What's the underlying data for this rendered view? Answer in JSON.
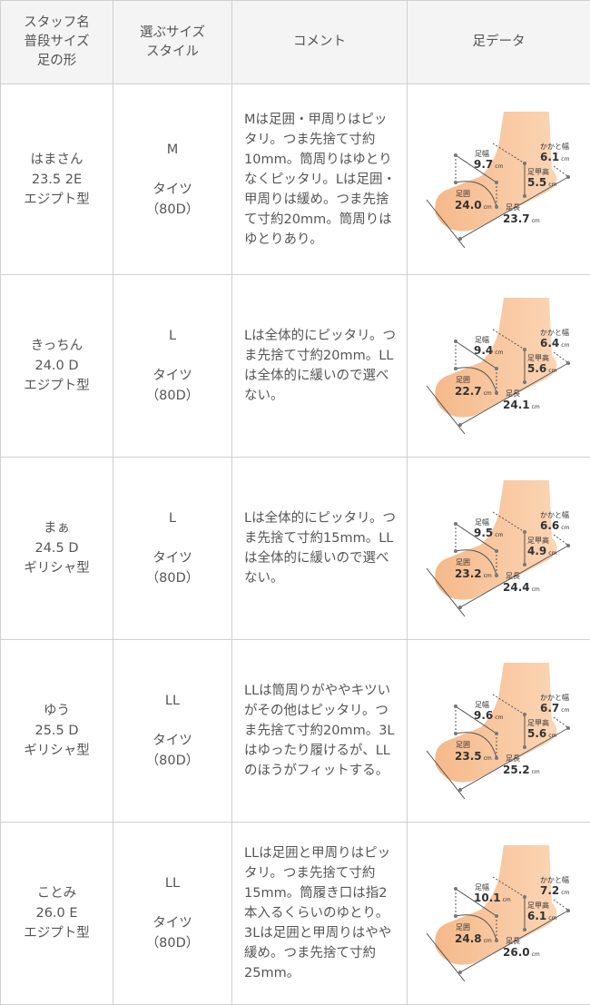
{
  "header": {
    "col1": [
      "スタッフ名",
      "普段サイズ",
      "足の形"
    ],
    "col2": [
      "選ぶサイズ",
      "スタイル"
    ],
    "col3": "コメント",
    "col4": "足データ"
  },
  "labels": {
    "width": "足幅",
    "girth": "足囲",
    "length": "足長",
    "instep": "足甲高",
    "heel": "かかと幅",
    "unit": "cm"
  },
  "colors": {
    "skin": "#f7c9a0",
    "border": "#d0d0d0",
    "header_bg": "#f4f4f4"
  },
  "rows": [
    {
      "name": "はまさん",
      "size": "23.5 2E",
      "shape": "エジプト型",
      "choice": "M",
      "style": "タイツ",
      "denier": "（80D）",
      "comment": "Mは足囲・甲周りはピッタリ。つま先捨て寸約10mm。筒周りはゆとりなくピッタリ。Lは足囲・甲周りは緩め。つま先捨て寸約20mm。筒周りはゆとりあり。",
      "foot": {
        "width": "9.7",
        "girth": "24.0",
        "length": "23.7",
        "instep": "5.5",
        "heel": "6.1"
      }
    },
    {
      "name": "きっちん",
      "size": "24.0 D",
      "shape": "エジプト型",
      "choice": "L",
      "style": "タイツ",
      "denier": "（80D）",
      "comment": "Lは全体的にピッタリ。つま先捨て寸約20mm。LLは全体的に緩いので選べない。",
      "foot": {
        "width": "9.4",
        "girth": "22.7",
        "length": "24.1",
        "instep": "5.6",
        "heel": "6.4"
      }
    },
    {
      "name": "まぁ",
      "size": "24.5 D",
      "shape": "ギリシャ型",
      "choice": "L",
      "style": "タイツ",
      "denier": "（80D）",
      "comment": "Lは全体的にピッタリ。つま先捨て寸約15mm。LLは全体的に緩いので選べない。",
      "foot": {
        "width": "9.5",
        "girth": "23.2",
        "length": "24.4",
        "instep": "4.9",
        "heel": "6.6"
      }
    },
    {
      "name": "ゆう",
      "size": "25.5 D",
      "shape": "ギリシャ型",
      "choice": "LL",
      "style": "タイツ",
      "denier": "（80D）",
      "comment": "LLは筒周りがややキツいがその他はピッタリ。つま先捨て寸約20mm。3Lはゆったり履けるが、LLのほうがフィットする。",
      "foot": {
        "width": "9.6",
        "girth": "23.5",
        "length": "25.2",
        "instep": "5.6",
        "heel": "6.7"
      }
    },
    {
      "name": "ことみ",
      "size": "26.0 E",
      "shape": "エジプト型",
      "choice": "LL",
      "style": "タイツ",
      "denier": "（80D）",
      "comment": "LLは足囲と甲周りはピッタリ。つま先捨て寸約15mm。筒履き口は指2本入るくらいのゆとり。3Lは足囲と甲周りはやや緩め。つま先捨て寸約25mm。",
      "foot": {
        "width": "10.1",
        "girth": "24.8",
        "length": "26.0",
        "instep": "6.1",
        "heel": "7.2"
      }
    }
  ]
}
